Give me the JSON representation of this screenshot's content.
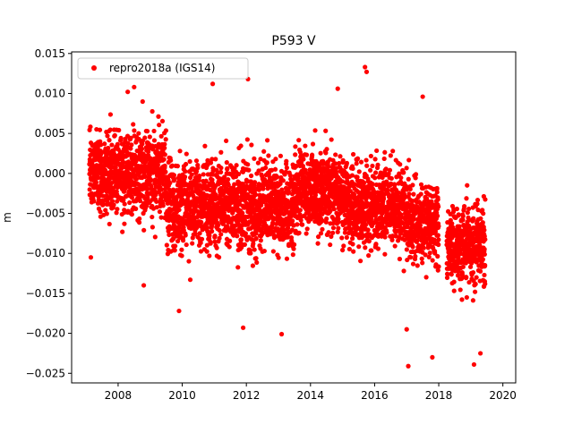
{
  "chart_data": {
    "type": "scatter",
    "title": "P593 V",
    "xlabel": "",
    "ylabel": "m",
    "xlim": [
      2006.55,
      2020.4
    ],
    "ylim": [
      -0.0262,
      0.0152
    ],
    "xticks": [
      2008,
      2010,
      2012,
      2014,
      2016,
      2018,
      2020
    ],
    "xtick_labels": [
      "2008",
      "2010",
      "2012",
      "2014",
      "2016",
      "2018",
      "2020"
    ],
    "yticks": [
      -0.025,
      -0.02,
      -0.015,
      -0.01,
      -0.005,
      0.0,
      0.005,
      0.01,
      0.015
    ],
    "ytick_labels": [
      "−0.025",
      "−0.020",
      "−0.015",
      "−0.010",
      "−0.005",
      "0.000",
      "0.005",
      "0.010",
      "0.015"
    ],
    "legend_position": "top-left",
    "grid": false,
    "marker_color": "#ff0000",
    "series": [
      {
        "name": "repro2018a (IGS14)",
        "color": "#ff0000",
        "x_range": [
          2007.1,
          2019.45
        ],
        "segments": [
          {
            "start": 2007.1,
            "end": 2009.5,
            "center": 0.0,
            "spread": 0.005
          },
          {
            "start": 2009.5,
            "end": 2013.5,
            "center": -0.004,
            "spread": 0.005
          },
          {
            "start": 2013.5,
            "end": 2015.0,
            "center": -0.002,
            "spread": 0.0045
          },
          {
            "start": 2015.0,
            "end": 2017.0,
            "center": -0.004,
            "spread": 0.0045
          },
          {
            "start": 2017.0,
            "end": 2018.0,
            "center": -0.006,
            "spread": 0.0045
          },
          {
            "start": 2018.25,
            "end": 2019.45,
            "center": -0.009,
            "spread": 0.0045
          }
        ],
        "notable_points": [
          {
            "x": 2007.15,
            "y": -0.0105
          },
          {
            "x": 2008.3,
            "y": 0.0102
          },
          {
            "x": 2008.5,
            "y": 0.0108
          },
          {
            "x": 2008.8,
            "y": -0.014
          },
          {
            "x": 2009.9,
            "y": -0.0172
          },
          {
            "x": 2010.25,
            "y": -0.0133
          },
          {
            "x": 2010.95,
            "y": 0.0112
          },
          {
            "x": 2011.9,
            "y": -0.0193
          },
          {
            "x": 2012.05,
            "y": 0.0118
          },
          {
            "x": 2013.1,
            "y": -0.0201
          },
          {
            "x": 2014.85,
            "y": 0.0106
          },
          {
            "x": 2015.7,
            "y": 0.0133
          },
          {
            "x": 2015.75,
            "y": 0.0127
          },
          {
            "x": 2017.0,
            "y": -0.0195
          },
          {
            "x": 2017.05,
            "y": -0.0241
          },
          {
            "x": 2017.5,
            "y": 0.0096
          },
          {
            "x": 2017.8,
            "y": -0.023
          },
          {
            "x": 2019.1,
            "y": -0.0239
          },
          {
            "x": 2019.3,
            "y": -0.0225
          }
        ]
      }
    ]
  }
}
